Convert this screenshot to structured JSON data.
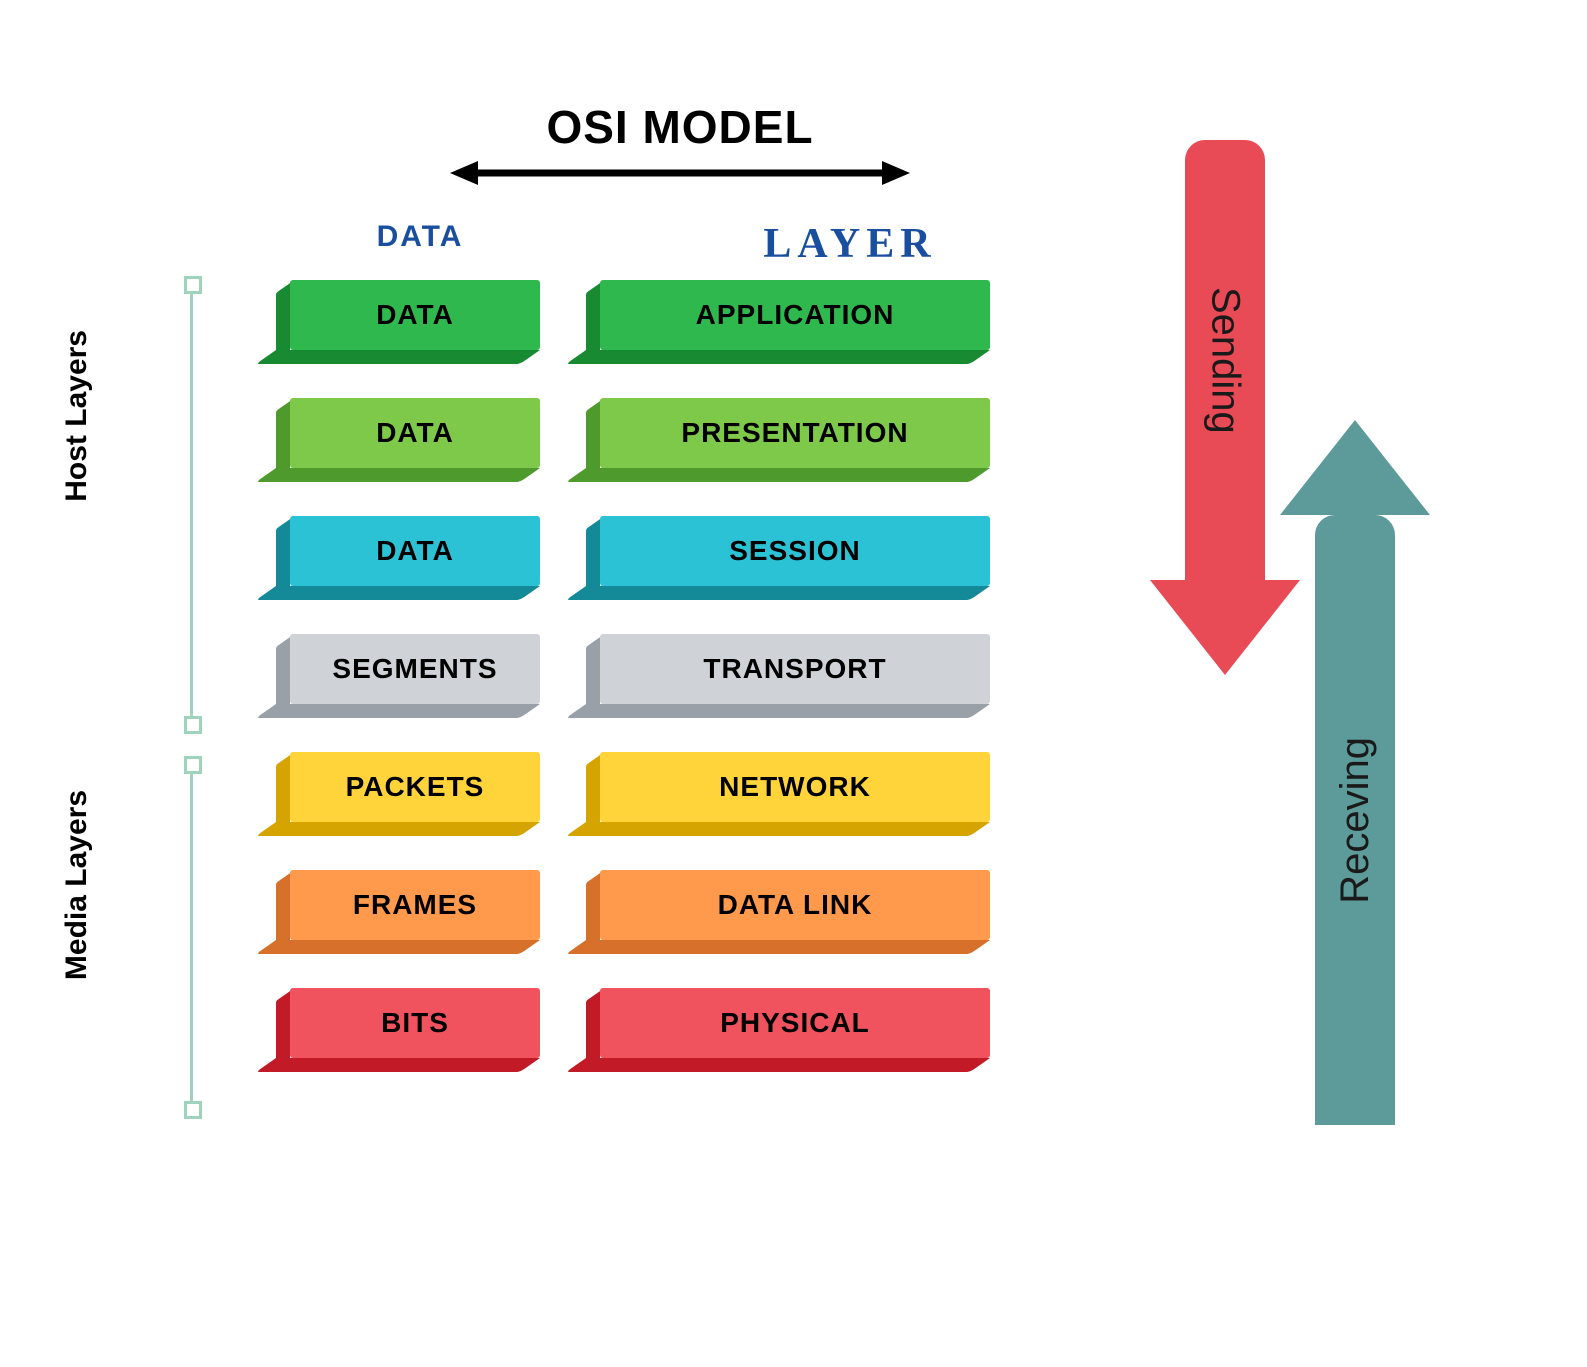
{
  "title": "OSI MODEL",
  "column_headers": {
    "data": "DATA",
    "layer": "LAYER"
  },
  "header_color": "#1a4fa0",
  "layers": [
    {
      "data": "DATA",
      "name": "APPLICATION",
      "face": "#2fb84e",
      "side": "#178a32",
      "bottom": "#178a32"
    },
    {
      "data": "DATA",
      "name": "PRESENTATION",
      "face": "#7ec94a",
      "side": "#4f9a2d",
      "bottom": "#4f9a2d"
    },
    {
      "data": "DATA",
      "name": "SESSION",
      "face": "#2bc2d6",
      "side": "#148a99",
      "bottom": "#148a99"
    },
    {
      "data": "SEGMENTS",
      "name": "TRANSPORT",
      "face": "#cfd3d8",
      "side": "#9aa0a8",
      "bottom": "#9aa0a8"
    },
    {
      "data": "PACKETS",
      "name": "NETWORK",
      "face": "#ffd43b",
      "side": "#d6a400",
      "bottom": "#d6a400"
    },
    {
      "data": "FRAMES",
      "name": "DATA LINK",
      "face": "#ff9a4d",
      "side": "#d6702a",
      "bottom": "#d6702a"
    },
    {
      "data": "BITS",
      "name": "PHYSICAL",
      "face": "#f0525e",
      "side": "#c21b27",
      "bottom": "#c21b27"
    }
  ],
  "groups": {
    "host": {
      "label": "Host Layers",
      "bracket_color": "#9fd3bd"
    },
    "media": {
      "label": "Media Layers",
      "bracket_color": "#9fd3bd"
    }
  },
  "side_arrows": {
    "sending": {
      "label": "Sending",
      "color": "#e84a56"
    },
    "receiving": {
      "label": "Receving",
      "color": "#5d9a9a"
    }
  },
  "style": {
    "title_fontsize": 46,
    "header_data_fontsize": 30,
    "header_layer_fontsize": 42,
    "block_fontsize": 28,
    "group_label_fontsize": 30,
    "arrow_label_fontsize": 40,
    "background": "#ffffff",
    "row_gap": 48,
    "block_height": 70,
    "data_block_width": 250,
    "layer_block_width": 390
  }
}
